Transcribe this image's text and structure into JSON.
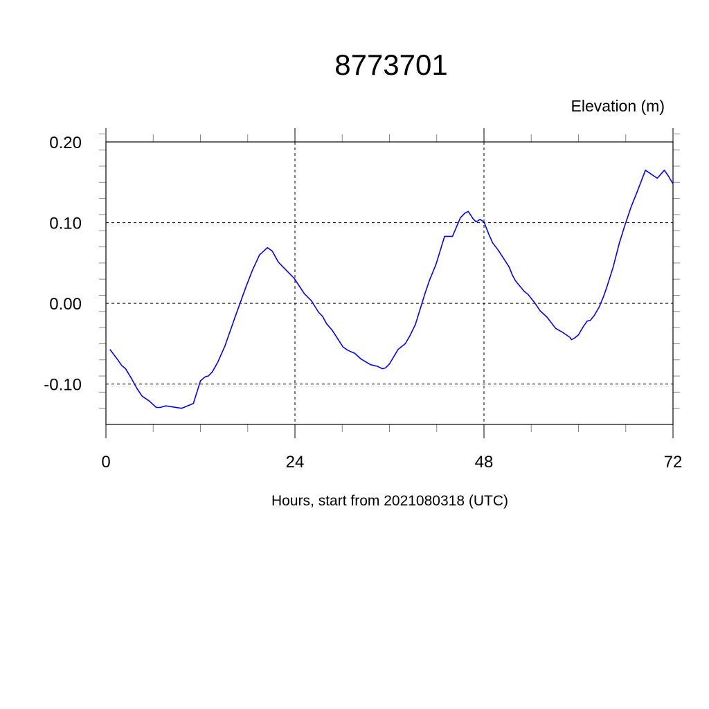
{
  "chart_data": {
    "type": "line",
    "title": "8773701",
    "ylabel": "Elevation (m)",
    "xlabel": "Hours, start from 2021080318 (UTC)",
    "xlim": [
      0,
      72
    ],
    "ylim": [
      -0.15,
      0.2
    ],
    "x_ticks": [
      0,
      24,
      48,
      72
    ],
    "x_tick_labels": [
      "0",
      "24",
      "48",
      "72"
    ],
    "x_minor_step": 6,
    "y_ticks": [
      -0.1,
      0.0,
      0.1,
      0.2
    ],
    "y_tick_labels": [
      "-0.10",
      "0.00",
      "0.10",
      "0.20"
    ],
    "y_minor_step": 0.02,
    "grid": true,
    "grid_style": "dashed",
    "line_color": "#0000ff",
    "series": [
      {
        "x": [
          0.5,
          1.5,
          2.0,
          2.5,
          3.3,
          3.9,
          4.6,
          5.5,
          6.4,
          6.9,
          7.6,
          9.6,
          11.1,
          12.0,
          12.6,
          13.0,
          13.5,
          14.2,
          15.1,
          16.4,
          17.8,
          18.6,
          19.5,
          20.5,
          21.1,
          21.9,
          23.1,
          23.9,
          25.2,
          26.1,
          27.0,
          27.5,
          28.0,
          28.7,
          30.1,
          30.7,
          31.6,
          32.4,
          33.6,
          34.5,
          35.1,
          35.5,
          36.0,
          37.1,
          38.0,
          38.6,
          39.3,
          40.5,
          41.1,
          41.9,
          43.0,
          44.0,
          45.0,
          45.6,
          46.0,
          46.6,
          47.0,
          47.5,
          48.0,
          48.6,
          49.1,
          49.8,
          51.2,
          51.6,
          52.0,
          53.1,
          53.6,
          54.5,
          55.1,
          56.0,
          57.1,
          58.0,
          58.9,
          59.1,
          59.5,
          60.0,
          60.6,
          61.1,
          61.5,
          62.0,
          62.6,
          63.2,
          63.6,
          64.4,
          65.2,
          65.9,
          66.7,
          67.4,
          68.5,
          70.0,
          70.9,
          71.4,
          72.0
        ],
        "y": [
          -0.057,
          -0.07,
          -0.077,
          -0.081,
          -0.094,
          -0.105,
          -0.115,
          -0.121,
          -0.129,
          -0.129,
          -0.127,
          -0.13,
          -0.124,
          -0.096,
          -0.091,
          -0.09,
          -0.085,
          -0.073,
          -0.053,
          -0.017,
          0.021,
          0.041,
          0.06,
          0.069,
          0.065,
          0.051,
          0.039,
          0.031,
          0.012,
          0.003,
          -0.011,
          -0.016,
          -0.025,
          -0.033,
          -0.054,
          -0.058,
          -0.062,
          -0.069,
          -0.076,
          -0.078,
          -0.081,
          -0.08,
          -0.075,
          -0.057,
          -0.05,
          -0.04,
          -0.026,
          0.012,
          0.029,
          0.048,
          0.083,
          0.083,
          0.106,
          0.112,
          0.114,
          0.105,
          0.101,
          0.104,
          0.101,
          0.086,
          0.075,
          0.066,
          0.045,
          0.035,
          0.028,
          0.015,
          0.011,
          0.0,
          -0.009,
          -0.017,
          -0.031,
          -0.036,
          -0.042,
          -0.045,
          -0.043,
          -0.039,
          -0.029,
          -0.022,
          -0.021,
          -0.015,
          -0.005,
          0.009,
          0.02,
          0.045,
          0.075,
          0.097,
          0.12,
          0.137,
          0.165,
          0.155,
          0.165,
          0.158,
          0.148
        ]
      }
    ]
  }
}
